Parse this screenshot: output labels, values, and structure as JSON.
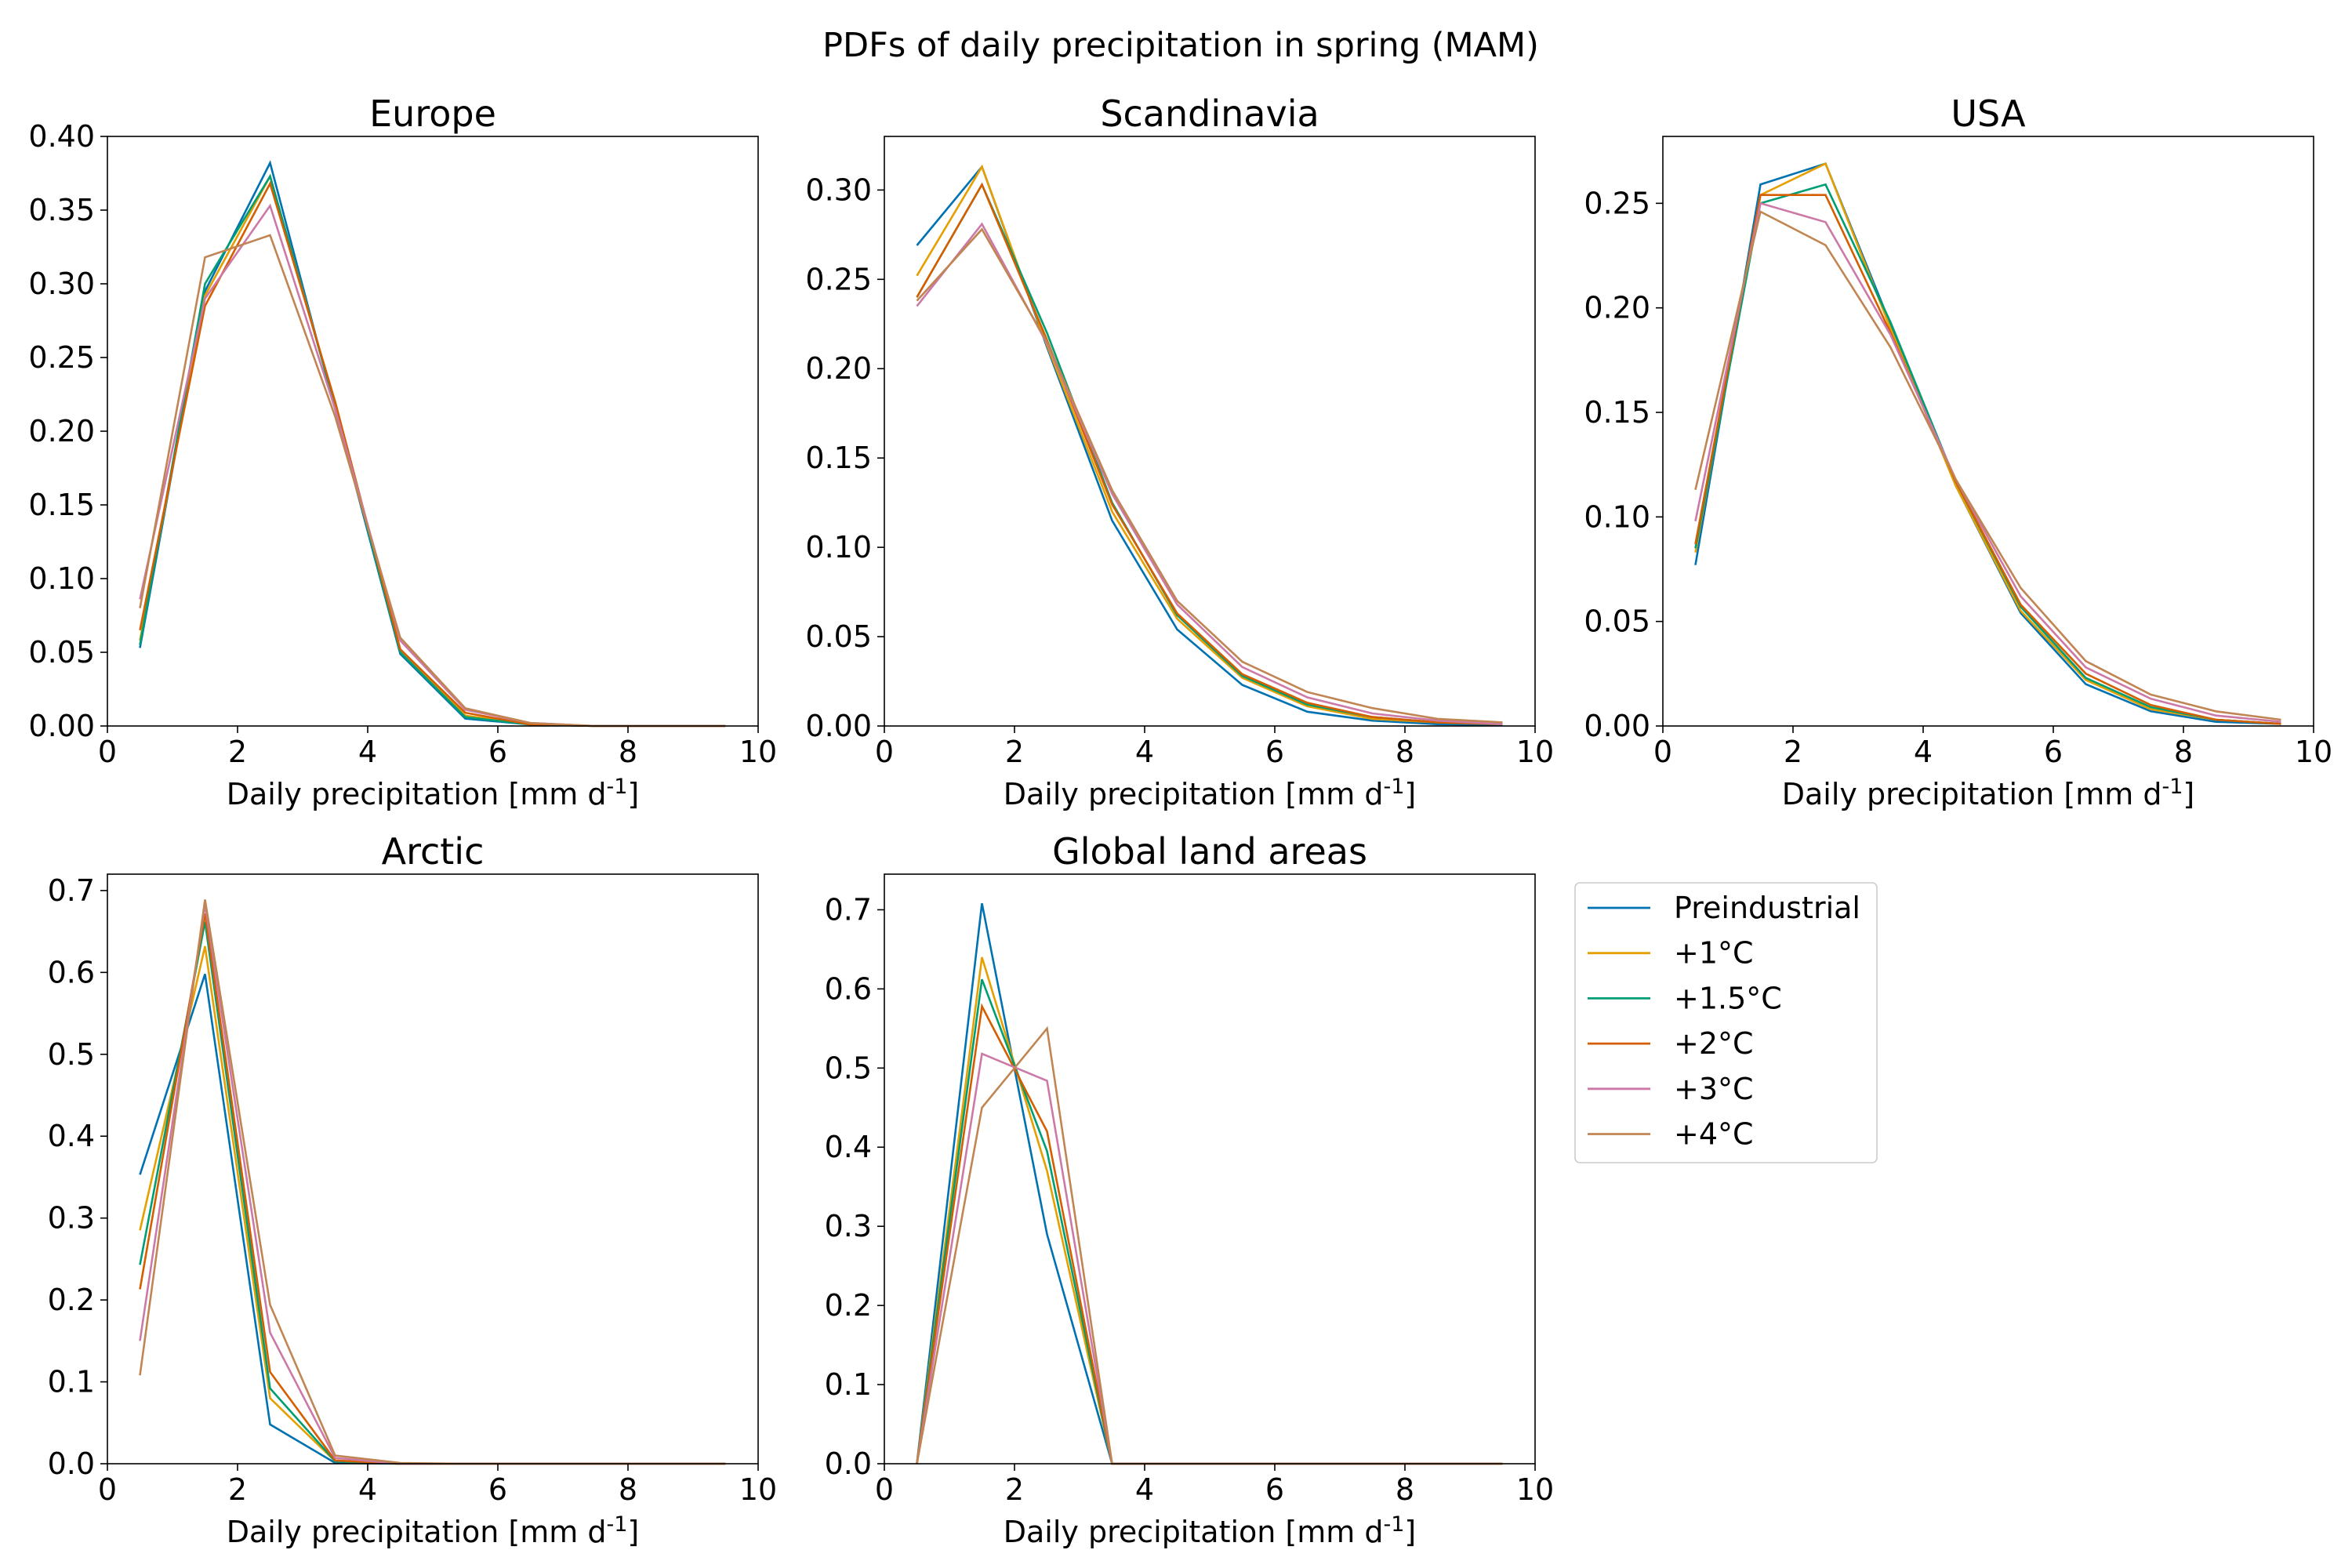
{
  "figure": {
    "suptitle": "PDFs of daily precipitation in spring (MAM)"
  },
  "colors": {
    "Preindustrial": "#0072b2",
    "+1°C": "#e69f00",
    "+1.5°C": "#009e73",
    "+2°C": "#d55e00",
    "+3°C": "#cc79a7",
    "+4°C": "#c08552"
  },
  "legend": {
    "placement": "right of bottom row",
    "entries": [
      "Preindustrial",
      "+1°C",
      "+1.5°C",
      "+2°C",
      "+3°C",
      "+4°C"
    ]
  },
  "chart_data": [
    {
      "type": "line",
      "title": "Europe",
      "xlabel": "Daily precipitation [mm d$^{-1}$]",
      "xlim": [
        0,
        10
      ],
      "ylim": [
        0,
        0.4
      ],
      "xticks": [
        "0",
        "2",
        "4",
        "6",
        "8",
        "10"
      ],
      "yticks": [
        "0.00",
        "0.05",
        "0.10",
        "0.15",
        "0.20",
        "0.25",
        "0.30",
        "0.35",
        "0.40"
      ],
      "ytick_values": [
        0,
        0.05,
        0.1,
        0.15,
        0.2,
        0.25,
        0.3,
        0.35,
        0.4
      ],
      "x": [
        0.5,
        1.5,
        2.5,
        3.5,
        4.5,
        5.5,
        6.5,
        7.5,
        8.5,
        9.5
      ],
      "series": [
        {
          "name": "Preindustrial",
          "values": [
            0.053,
            0.295,
            0.382,
            0.215,
            0.049,
            0.005,
            0.001,
            0,
            0,
            0
          ]
        },
        {
          "name": "+1°C",
          "values": [
            0.058,
            0.292,
            0.373,
            0.218,
            0.052,
            0.007,
            0.001,
            0,
            0,
            0
          ]
        },
        {
          "name": "+1.5°C",
          "values": [
            0.055,
            0.3,
            0.373,
            0.217,
            0.05,
            0.006,
            0.001,
            0,
            0,
            0
          ]
        },
        {
          "name": "+2°C",
          "values": [
            0.065,
            0.285,
            0.368,
            0.22,
            0.052,
            0.009,
            0.001,
            0,
            0,
            0
          ]
        },
        {
          "name": "+3°C",
          "values": [
            0.086,
            0.29,
            0.353,
            0.215,
            0.058,
            0.011,
            0.002,
            0,
            0,
            0
          ]
        },
        {
          "name": "+4°C",
          "values": [
            0.08,
            0.318,
            0.333,
            0.21,
            0.06,
            0.012,
            0.002,
            0,
            0,
            0
          ]
        }
      ]
    },
    {
      "type": "line",
      "title": "Scandinavia",
      "xlabel": "Daily precipitation [mm d$^{-1}$]",
      "xlim": [
        0,
        10
      ],
      "ylim": [
        0,
        0.33
      ],
      "xticks": [
        "0",
        "2",
        "4",
        "6",
        "8",
        "10"
      ],
      "yticks": [
        "0.00",
        "0.05",
        "0.10",
        "0.15",
        "0.20",
        "0.25",
        "0.30"
      ],
      "ytick_values": [
        0,
        0.05,
        0.1,
        0.15,
        0.2,
        0.25,
        0.3
      ],
      "x": [
        0.5,
        1.5,
        2.5,
        3.5,
        4.5,
        5.5,
        6.5,
        7.5,
        8.5,
        9.5
      ],
      "series": [
        {
          "name": "Preindustrial",
          "values": [
            0.269,
            0.313,
            0.212,
            0.115,
            0.054,
            0.023,
            0.008,
            0.003,
            0.001,
            0.0005
          ]
        },
        {
          "name": "+1°C",
          "values": [
            0.252,
            0.313,
            0.213,
            0.12,
            0.06,
            0.027,
            0.011,
            0.004,
            0.002,
            0.001
          ]
        },
        {
          "name": "+1.5°C",
          "values": [
            0.24,
            0.303,
            0.22,
            0.125,
            0.062,
            0.028,
            0.012,
            0.005,
            0.002,
            0.001
          ]
        },
        {
          "name": "+2°C",
          "values": [
            0.24,
            0.303,
            0.216,
            0.124,
            0.063,
            0.029,
            0.013,
            0.005,
            0.002,
            0.001
          ]
        },
        {
          "name": "+3°C",
          "values": [
            0.235,
            0.281,
            0.214,
            0.13,
            0.068,
            0.033,
            0.016,
            0.007,
            0.003,
            0.001
          ]
        },
        {
          "name": "+4°C",
          "values": [
            0.238,
            0.278,
            0.215,
            0.132,
            0.07,
            0.036,
            0.019,
            0.01,
            0.004,
            0.002
          ]
        }
      ]
    },
    {
      "type": "line",
      "title": "USA",
      "xlabel": "Daily precipitation [mm d$^{-1}$]",
      "xlim": [
        0,
        10
      ],
      "ylim": [
        0,
        0.282
      ],
      "xticks": [
        "0",
        "2",
        "4",
        "6",
        "8",
        "10"
      ],
      "yticks": [
        "0.00",
        "0.05",
        "0.10",
        "0.15",
        "0.20",
        "0.25"
      ],
      "ytick_values": [
        0,
        0.05,
        0.1,
        0.15,
        0.2,
        0.25
      ],
      "x": [
        0.5,
        1.5,
        2.5,
        3.5,
        4.5,
        5.5,
        6.5,
        7.5,
        8.5,
        9.5
      ],
      "series": [
        {
          "name": "Preindustrial",
          "values": [
            0.077,
            0.259,
            0.269,
            0.192,
            0.115,
            0.054,
            0.02,
            0.007,
            0.002,
            0.001
          ]
        },
        {
          "name": "+1°C",
          "values": [
            0.083,
            0.254,
            0.269,
            0.19,
            0.115,
            0.055,
            0.022,
            0.008,
            0.003,
            0.001
          ]
        },
        {
          "name": "+1.5°C",
          "values": [
            0.085,
            0.25,
            0.259,
            0.193,
            0.117,
            0.057,
            0.023,
            0.009,
            0.003,
            0.001
          ]
        },
        {
          "name": "+2°C",
          "values": [
            0.087,
            0.254,
            0.254,
            0.188,
            0.117,
            0.058,
            0.025,
            0.01,
            0.003,
            0.001
          ]
        },
        {
          "name": "+3°C",
          "values": [
            0.098,
            0.25,
            0.241,
            0.187,
            0.118,
            0.062,
            0.028,
            0.013,
            0.005,
            0.002
          ]
        },
        {
          "name": "+4°C",
          "values": [
            0.113,
            0.246,
            0.23,
            0.181,
            0.118,
            0.066,
            0.031,
            0.015,
            0.007,
            0.003
          ]
        }
      ]
    },
    {
      "type": "line",
      "title": "Arctic",
      "xlabel": "Daily precipitation [mm d$^{-1}$]",
      "xlim": [
        0,
        10
      ],
      "ylim": [
        0,
        0.72
      ],
      "xticks": [
        "0",
        "2",
        "4",
        "6",
        "8",
        "10"
      ],
      "yticks": [
        "0.0",
        "0.1",
        "0.2",
        "0.3",
        "0.4",
        "0.5",
        "0.6",
        "0.7"
      ],
      "ytick_values": [
        0,
        0.1,
        0.2,
        0.3,
        0.4,
        0.5,
        0.6,
        0.7
      ],
      "x": [
        0.5,
        1.5,
        2.5,
        3.5,
        4.5,
        5.5,
        6.5,
        7.5,
        8.5,
        9.5
      ],
      "series": [
        {
          "name": "Preindustrial",
          "values": [
            0.353,
            0.598,
            0.048,
            0.001,
            0,
            0,
            0,
            0,
            0,
            0
          ]
        },
        {
          "name": "+1°C",
          "values": [
            0.285,
            0.632,
            0.08,
            0.003,
            0,
            0,
            0,
            0,
            0,
            0
          ]
        },
        {
          "name": "+1.5°C",
          "values": [
            0.243,
            0.662,
            0.092,
            0.003,
            0,
            0,
            0,
            0,
            0,
            0
          ]
        },
        {
          "name": "+2°C",
          "values": [
            0.213,
            0.672,
            0.112,
            0.004,
            0,
            0,
            0,
            0,
            0,
            0
          ]
        },
        {
          "name": "+3°C",
          "values": [
            0.15,
            0.683,
            0.16,
            0.007,
            0,
            0,
            0,
            0,
            0,
            0
          ]
        },
        {
          "name": "+4°C",
          "values": [
            0.108,
            0.689,
            0.194,
            0.01,
            0.001,
            0,
            0,
            0,
            0,
            0
          ]
        }
      ]
    },
    {
      "type": "line",
      "title": "Global land areas",
      "xlabel": "Daily precipitation [mm d$^{-1}$]",
      "xlim": [
        0,
        10
      ],
      "ylim": [
        0,
        0.745
      ],
      "xticks": [
        "0",
        "2",
        "4",
        "6",
        "8",
        "10"
      ],
      "yticks": [
        "0.0",
        "0.1",
        "0.2",
        "0.3",
        "0.4",
        "0.5",
        "0.6",
        "0.7"
      ],
      "ytick_values": [
        0,
        0.1,
        0.2,
        0.3,
        0.4,
        0.5,
        0.6,
        0.7
      ],
      "x": [
        0.5,
        1.5,
        2.5,
        3.5,
        4.5,
        5.5,
        6.5,
        7.5,
        8.5,
        9.5
      ],
      "series": [
        {
          "name": "Preindustrial",
          "values": [
            0,
            0.708,
            0.29,
            0,
            0,
            0,
            0,
            0,
            0,
            0
          ]
        },
        {
          "name": "+1°C",
          "values": [
            0,
            0.64,
            0.37,
            0,
            0,
            0,
            0,
            0,
            0,
            0
          ]
        },
        {
          "name": "+1.5°C",
          "values": [
            0,
            0.612,
            0.395,
            0,
            0,
            0,
            0,
            0,
            0,
            0
          ]
        },
        {
          "name": "+2°C",
          "values": [
            0,
            0.578,
            0.42,
            0,
            0,
            0,
            0,
            0,
            0,
            0
          ]
        },
        {
          "name": "+3°C",
          "values": [
            0,
            0.518,
            0.484,
            0,
            0,
            0,
            0,
            0,
            0,
            0
          ]
        },
        {
          "name": "+4°C",
          "values": [
            0,
            0.45,
            0.55,
            0,
            0,
            0,
            0,
            0,
            0,
            0
          ]
        }
      ]
    }
  ]
}
